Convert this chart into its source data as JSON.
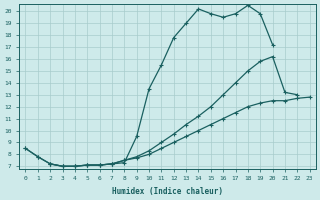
{
  "bg_color": "#ceeaea",
  "grid_color": "#a8cccc",
  "line_color": "#1a6060",
  "xlabel": "Humidex (Indice chaleur)",
  "xlim": [
    -0.5,
    23.5
  ],
  "ylim": [
    6.8,
    20.6
  ],
  "xticks": [
    0,
    1,
    2,
    3,
    4,
    5,
    6,
    7,
    8,
    9,
    10,
    11,
    12,
    13,
    14,
    15,
    16,
    17,
    18,
    19,
    20,
    21,
    22,
    23
  ],
  "yticks": [
    7,
    8,
    9,
    10,
    11,
    12,
    13,
    14,
    15,
    16,
    17,
    18,
    19,
    20
  ],
  "line1_x": [
    0,
    1,
    2,
    3,
    4,
    5,
    6,
    7,
    8,
    9,
    10,
    11,
    12,
    13,
    14,
    15,
    16,
    17,
    18,
    19,
    20
  ],
  "line1_y": [
    8.5,
    7.8,
    7.2,
    7.0,
    7.0,
    7.1,
    7.1,
    7.2,
    7.3,
    9.5,
    13.5,
    15.5,
    17.8,
    19.0,
    20.2,
    19.8,
    19.5,
    19.8,
    20.5,
    19.8,
    17.2
  ],
  "line2_x": [
    0,
    1,
    2,
    3,
    4,
    5,
    6,
    7,
    8,
    9,
    10,
    11,
    12,
    13,
    14,
    15,
    16,
    17,
    18,
    19,
    20,
    21,
    22
  ],
  "line2_y": [
    8.5,
    7.8,
    7.2,
    7.0,
    7.0,
    7.1,
    7.1,
    7.2,
    7.5,
    7.8,
    8.3,
    9.0,
    9.7,
    10.5,
    11.2,
    12.0,
    13.0,
    14.0,
    15.0,
    15.8,
    16.2,
    13.2,
    13.0
  ],
  "line3_x": [
    2,
    3,
    4,
    5,
    6,
    7,
    8,
    9,
    10,
    11,
    12,
    13,
    14,
    15,
    16,
    17,
    18,
    19,
    20,
    21,
    22,
    23
  ],
  "line3_y": [
    7.2,
    7.0,
    7.0,
    7.1,
    7.1,
    7.2,
    7.5,
    7.7,
    8.0,
    8.5,
    9.0,
    9.5,
    10.0,
    10.5,
    11.0,
    11.5,
    12.0,
    12.3,
    12.5,
    12.5,
    12.7,
    12.8
  ]
}
